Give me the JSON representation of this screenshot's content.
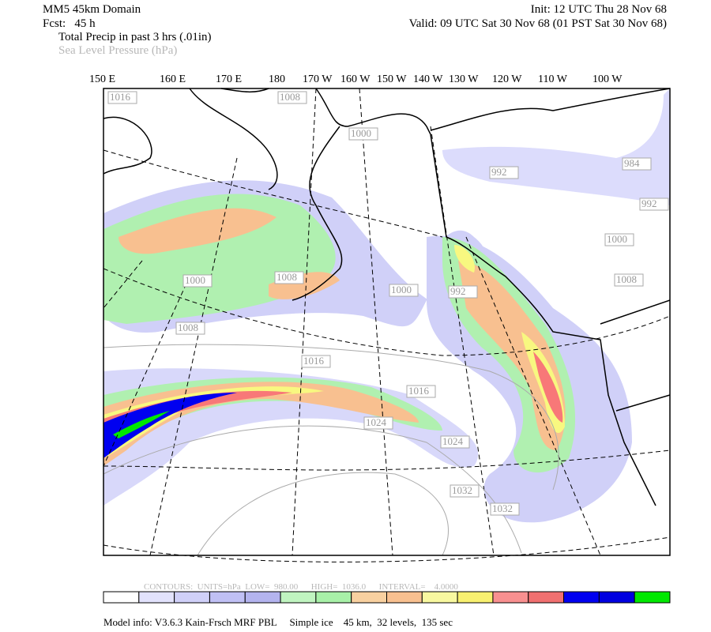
{
  "header": {
    "domain": "MM5 45km Domain",
    "init": "Init: 12 UTC Thu 28 Nov 68",
    "forecast": "Fcst:   45 h",
    "valid": "Valid: 09 UTC Sat 30 Nov 68 (01 PST Sat 30 Nov 68)",
    "field1": "Total Precip in past 3 hrs (.01in)",
    "field2": "Sea Level Pressure (hPa)"
  },
  "longitudes": [
    "150 E",
    "160 E",
    "170 E",
    "180",
    "170 W",
    "160 W",
    "150 W",
    "140 W",
    "130 W",
    "120 W",
    "110 W",
    "100 W"
  ],
  "contour_labels": [
    "1016",
    "1008",
    "1000",
    "992",
    "984",
    "992",
    "1000",
    "1008",
    "1000",
    "1008",
    "1000",
    "992",
    "1008",
    "1016",
    "1016",
    "1024",
    "1024",
    "1032",
    "1032"
  ],
  "contour_info": "CONTOURS:  UNITS=hPa  LOW=  980.00      HIGH=  1036.0      INTERVAL=    4.0000",
  "colorbar": [
    "#ffffff",
    "#e2e2fc",
    "#d0d0f8",
    "#c0c0f4",
    "#b4b4ee",
    "#c0f4c0",
    "#a8f0a8",
    "#f8d0a0",
    "#f8c090",
    "#f8f8a0",
    "#f8f070",
    "#f89090",
    "#f07070",
    "#0000f0",
    "#0000e0",
    "#00e800"
  ],
  "footer": "Model info: V3.6.3 Kain-Frsch MRF PBL     Simple ice    45 km,  32 levels,  135 sec"
}
